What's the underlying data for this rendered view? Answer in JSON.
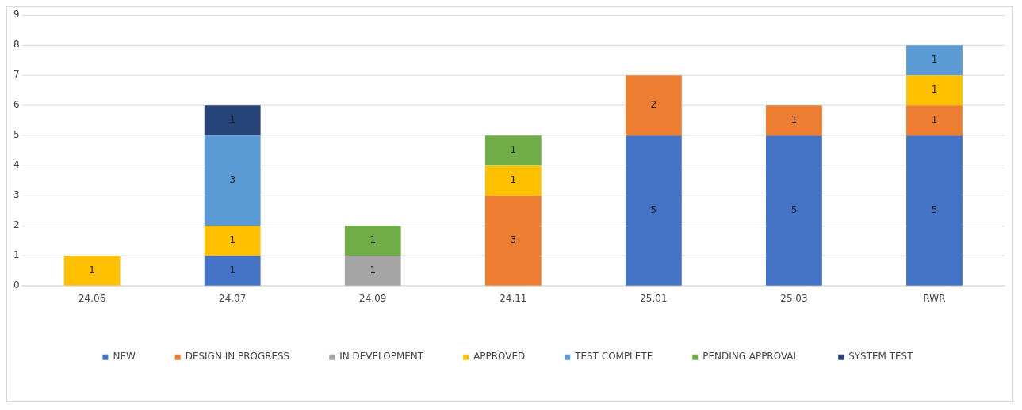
{
  "chart_data": {
    "type": "bar",
    "stacked": true,
    "categories": [
      "24.06",
      "24.07",
      "24.09",
      "24.11",
      "25.01",
      "25.03",
      "RWR"
    ],
    "series": [
      {
        "name": "NEW",
        "color": "#4472c4",
        "values": [
          null,
          1,
          null,
          null,
          5,
          5,
          5
        ]
      },
      {
        "name": "DESIGN IN PROGRESS",
        "color": "#ed7d31",
        "values": [
          null,
          null,
          null,
          3,
          2,
          1,
          1
        ]
      },
      {
        "name": "IN DEVELOPMENT",
        "color": "#a5a5a5",
        "values": [
          null,
          null,
          1,
          null,
          null,
          null,
          null
        ]
      },
      {
        "name": "APPROVED",
        "color": "#ffc000",
        "values": [
          1,
          1,
          null,
          1,
          null,
          null,
          1
        ]
      },
      {
        "name": "TEST COMPLETE",
        "color": "#5b9bd5",
        "values": [
          null,
          3,
          null,
          null,
          null,
          null,
          1
        ]
      },
      {
        "name": "PENDING APPROVAL",
        "color": "#70ad47",
        "values": [
          null,
          null,
          1,
          1,
          null,
          null,
          null
        ]
      },
      {
        "name": "SYSTEM TEST",
        "color": "#264478",
        "values": [
          null,
          1,
          null,
          null,
          null,
          null,
          null
        ]
      }
    ],
    "ylim": [
      0,
      9
    ],
    "yticks": [
      0,
      1,
      2,
      3,
      4,
      5,
      6,
      7,
      8,
      9
    ],
    "grid": "y",
    "legend": "bottom",
    "data_labels": true
  }
}
